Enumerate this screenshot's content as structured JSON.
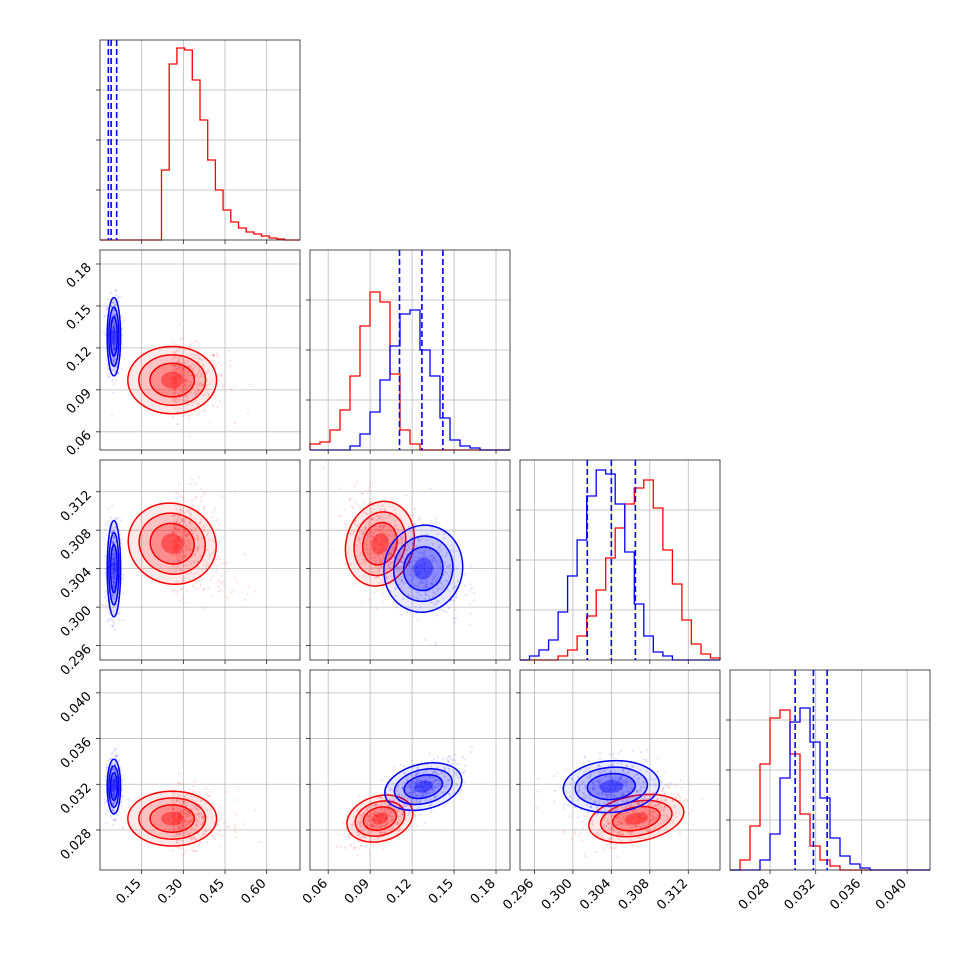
{
  "chart_data": {
    "type": "corner",
    "parameters": [
      {
        "ticks": [
          0.15,
          0.3,
          0.45,
          0.6
        ],
        "tick_labels": [
          "0.15",
          "0.30",
          "0.45",
          "0.60"
        ],
        "range": [
          0.0,
          0.72
        ]
      },
      {
        "ticks": [
          0.06,
          0.09,
          0.12,
          0.15,
          0.18
        ],
        "tick_labels": [
          "0.06",
          "0.09",
          "0.12",
          "0.15",
          "0.18"
        ],
        "range": [
          0.047,
          0.19
        ]
      },
      {
        "ticks": [
          0.296,
          0.3,
          0.304,
          0.308,
          0.312
        ],
        "tick_labels": [
          "0.296",
          "0.300",
          "0.304",
          "0.308",
          "0.312"
        ],
        "range": [
          0.2945,
          0.3153
        ]
      },
      {
        "ticks": [
          0.028,
          0.032,
          0.036,
          0.04
        ],
        "tick_labels": [
          "0.028",
          "0.032",
          "0.036",
          "0.040"
        ],
        "range": [
          0.0245,
          0.042
        ]
      }
    ],
    "series": [
      {
        "color": "#ff0000",
        "mean": [
          0.26,
          0.097,
          0.3066,
          0.029
        ],
        "std": [
          0.08,
          0.012,
          0.0025,
          0.0012
        ]
      },
      {
        "color": "#0000ff",
        "mean": [
          0.05,
          0.128,
          0.304,
          0.0318
        ],
        "std": [
          0.012,
          0.014,
          0.0025,
          0.0012
        ],
        "quantiles": [
          [
            0.03,
            0.04,
            0.06
          ],
          [
            0.111,
            0.127,
            0.142
          ],
          [
            0.3015,
            0.304,
            0.3065
          ],
          [
            0.0302,
            0.0318,
            0.033
          ]
        ]
      }
    ],
    "histograms": [
      {
        "bins": [
          0.0,
          0.72
        ],
        "red": [
          0,
          0,
          0,
          0,
          0,
          0,
          0,
          0,
          0.35,
          0.88,
          0.96,
          0.95,
          0.8,
          0.6,
          0.4,
          0.25,
          0.15,
          0.09,
          0.06,
          0.04,
          0.03,
          0.02,
          0.01,
          0.005,
          0,
          0
        ],
        "blue": []
      },
      {
        "bins": [
          0.047,
          0.19
        ],
        "red": [
          0.03,
          0.04,
          0.1,
          0.2,
          0.37,
          0.62,
          0.79,
          0.74,
          0.38,
          0.1,
          0.03,
          0,
          0,
          0,
          0,
          0,
          0,
          0,
          0,
          0
        ],
        "blue": [
          0,
          0,
          0,
          0,
          0.02,
          0.08,
          0.19,
          0.35,
          0.52,
          0.68,
          0.7,
          0.5,
          0.37,
          0.16,
          0.05,
          0.02,
          0.01,
          0,
          0,
          0
        ]
      },
      {
        "bins": [
          0.2945,
          0.3153
        ],
        "red": [
          0,
          0,
          0,
          0,
          0.02,
          0.05,
          0.12,
          0.22,
          0.35,
          0.51,
          0.66,
          0.78,
          0.86,
          0.9,
          0.76,
          0.55,
          0.38,
          0.2,
          0.08,
          0.03,
          0.01
        ],
        "blue": [
          0,
          0.02,
          0.05,
          0.1,
          0.24,
          0.42,
          0.6,
          0.82,
          0.95,
          0.93,
          0.78,
          0.54,
          0.28,
          0.12,
          0.04,
          0.02,
          0,
          0,
          0,
          0,
          0
        ]
      },
      {
        "bins": [
          0.0245,
          0.042
        ],
        "red": [
          0,
          0.05,
          0.22,
          0.53,
          0.76,
          0.8,
          0.58,
          0.28,
          0.12,
          0.05,
          0.02,
          0,
          0,
          0,
          0,
          0,
          0,
          0,
          0,
          0
        ],
        "blue": [
          0,
          0,
          0,
          0.05,
          0.18,
          0.46,
          0.74,
          0.81,
          0.64,
          0.36,
          0.16,
          0.07,
          0.03,
          0.01,
          0,
          0,
          0,
          0,
          0,
          0
        ]
      }
    ],
    "grid": true
  }
}
